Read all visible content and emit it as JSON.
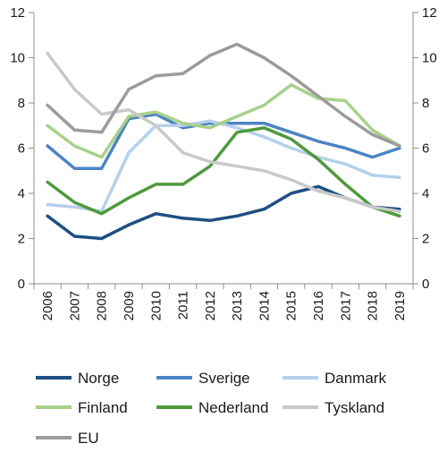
{
  "chart_data": {
    "type": "line",
    "x": [
      "2006",
      "2007",
      "2008",
      "2009",
      "2010",
      "2011",
      "2012",
      "2013",
      "2014",
      "2015",
      "2016",
      "2017",
      "2018",
      "2019"
    ],
    "ylim": [
      0,
      12
    ],
    "yticks": [
      0,
      2,
      4,
      6,
      8,
      10,
      12
    ],
    "grid": false,
    "legend_position": "bottom",
    "secondary_axis": "right, same scale",
    "series": [
      {
        "name": "Norge",
        "color": "#1d4f82",
        "values": [
          3.0,
          2.1,
          2.0,
          2.6,
          3.1,
          2.9,
          2.8,
          3.0,
          3.3,
          4.0,
          4.3,
          3.8,
          3.4,
          3.3
        ]
      },
      {
        "name": "Sverige",
        "color": "#4a84c4",
        "values": [
          6.1,
          5.1,
          5.1,
          7.3,
          7.5,
          6.9,
          7.1,
          7.1,
          7.1,
          6.7,
          6.3,
          6.0,
          5.6,
          6.0
        ]
      },
      {
        "name": "Danmark",
        "color": "#b5d0ec",
        "values": [
          3.5,
          3.4,
          3.2,
          5.8,
          7.0,
          7.0,
          7.2,
          6.9,
          6.5,
          6.0,
          5.6,
          5.3,
          4.8,
          4.7
        ]
      },
      {
        "name": "Finland",
        "color": "#a8d08a",
        "values": [
          7.0,
          6.1,
          5.6,
          7.4,
          7.6,
          7.1,
          6.9,
          7.4,
          7.9,
          8.8,
          8.2,
          8.1,
          6.8,
          6.1
        ]
      },
      {
        "name": "Nederland",
        "color": "#4e9a3c",
        "values": [
          4.5,
          3.6,
          3.1,
          3.8,
          4.4,
          4.4,
          5.2,
          6.7,
          6.9,
          6.4,
          5.5,
          4.4,
          3.4,
          3.0
        ]
      },
      {
        "name": "Tyskland",
        "color": "#c9c9c9",
        "values": [
          10.2,
          8.6,
          7.5,
          7.7,
          7.0,
          5.8,
          5.4,
          5.2,
          5.0,
          4.6,
          4.1,
          3.8,
          3.4,
          3.2
        ]
      },
      {
        "name": "EU",
        "color": "#9b9b9b",
        "values": [
          7.9,
          6.8,
          6.7,
          8.6,
          9.2,
          9.3,
          10.1,
          10.6,
          10.0,
          9.2,
          8.3,
          7.4,
          6.6,
          6.1
        ]
      }
    ]
  }
}
